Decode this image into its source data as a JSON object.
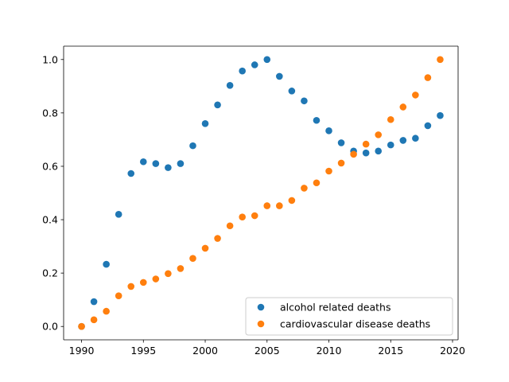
{
  "chart_data": {
    "type": "scatter",
    "title": "",
    "xlabel": "",
    "ylabel": "",
    "xlim": [
      1988.55,
      2020.45
    ],
    "ylim": [
      -0.05,
      1.05
    ],
    "xticks": [
      1990,
      1995,
      2000,
      2005,
      2010,
      2015,
      2020
    ],
    "yticks": [
      0.0,
      0.2,
      0.4,
      0.6,
      0.8,
      1.0
    ],
    "xtick_labels": [
      "1990",
      "1995",
      "2000",
      "2005",
      "2010",
      "2015",
      "2020"
    ],
    "ytick_labels": [
      "0.0",
      "0.2",
      "0.4",
      "0.6",
      "0.8",
      "1.0"
    ],
    "grid": false,
    "legend_position": "bottom-right",
    "x": [
      1990,
      1991,
      1992,
      1993,
      1994,
      1995,
      1996,
      1997,
      1998,
      1999,
      2000,
      2001,
      2002,
      2003,
      2004,
      2005,
      2006,
      2007,
      2008,
      2009,
      2010,
      2011,
      2012,
      2013,
      2014,
      2015,
      2016,
      2017,
      2018,
      2019
    ],
    "series": [
      {
        "name": "alcohol related deaths",
        "color": "#1f77b4",
        "values": [
          0.0,
          0.093,
          0.233,
          0.42,
          0.573,
          0.617,
          0.61,
          0.595,
          0.61,
          0.677,
          0.76,
          0.83,
          0.903,
          0.957,
          0.98,
          1.0,
          0.937,
          0.882,
          0.845,
          0.772,
          0.733,
          0.688,
          0.657,
          0.65,
          0.657,
          0.68,
          0.697,
          0.705,
          0.752,
          0.79
        ]
      },
      {
        "name": "cardiovascular disease deaths",
        "color": "#ff7f0e",
        "values": [
          0.0,
          0.025,
          0.057,
          0.115,
          0.15,
          0.165,
          0.178,
          0.198,
          0.217,
          0.255,
          0.293,
          0.33,
          0.377,
          0.41,
          0.415,
          0.452,
          0.452,
          0.472,
          0.518,
          0.538,
          0.582,
          0.612,
          0.645,
          0.683,
          0.718,
          0.775,
          0.822,
          0.867,
          0.932,
          1.0
        ]
      }
    ]
  }
}
